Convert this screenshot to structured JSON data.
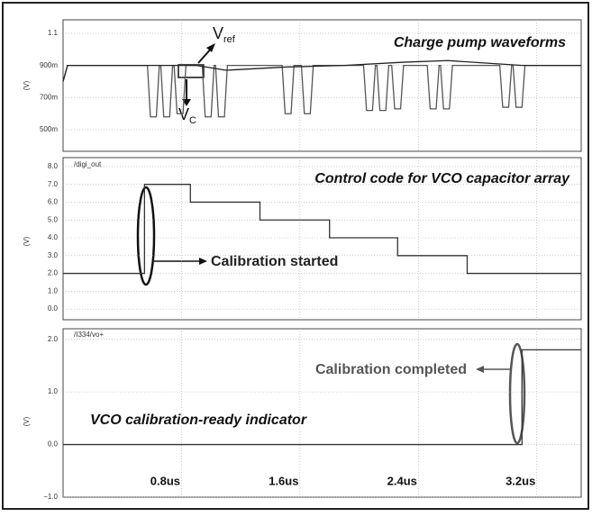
{
  "chart_data": [
    {
      "type": "line",
      "title": "Charge pump waveforms",
      "y_label": "(V)",
      "xlim": [
        0,
        3.5
      ],
      "xticks": [
        0.8,
        1.6,
        2.4,
        3.2
      ],
      "ylim": [
        0.45,
        1.15
      ],
      "yticks": [
        {
          "value": 0.5,
          "label": "500m"
        },
        {
          "value": 0.7,
          "label": "700m"
        },
        {
          "value": 0.9,
          "label": "900m"
        },
        {
          "value": 1.1,
          "label": "1.1"
        }
      ],
      "grid": true,
      "annotations": [
        {
          "main": "V",
          "sub": "ref"
        },
        {
          "main": "V",
          "sub": "C"
        }
      ],
      "series": [
        {
          "name": "Vc",
          "color": "#555555",
          "x": [
            0,
            0.03,
            0.57,
            0.59,
            0.63,
            0.65,
            0.66,
            0.68,
            0.72,
            0.74,
            0.75,
            0.77,
            0.81,
            0.83,
            0.94,
            0.96,
            1.0,
            1.02,
            1.03,
            1.05,
            1.09,
            1.11,
            1.48,
            1.5,
            1.54,
            1.56,
            1.61,
            1.63,
            1.67,
            1.69,
            2.03,
            2.05,
            2.09,
            2.11,
            2.12,
            2.14,
            2.18,
            2.2,
            2.22,
            2.24,
            2.28,
            2.3,
            2.46,
            2.48,
            2.52,
            2.54,
            2.55,
            2.57,
            2.61,
            2.63,
            2.95,
            2.97,
            3.01,
            3.03,
            3.04,
            3.06,
            3.1,
            3.12,
            3.5
          ],
          "values": [
            0.8,
            0.9,
            0.9,
            0.58,
            0.58,
            0.9,
            0.9,
            0.58,
            0.58,
            0.9,
            0.9,
            0.6,
            0.6,
            0.9,
            0.9,
            0.58,
            0.58,
            0.9,
            0.9,
            0.58,
            0.58,
            0.9,
            0.9,
            0.6,
            0.6,
            0.9,
            0.9,
            0.6,
            0.6,
            0.9,
            0.9,
            0.62,
            0.62,
            0.9,
            0.9,
            0.62,
            0.62,
            0.9,
            0.9,
            0.63,
            0.63,
            0.9,
            0.9,
            0.63,
            0.63,
            0.9,
            0.9,
            0.63,
            0.63,
            0.9,
            0.9,
            0.64,
            0.64,
            0.9,
            0.9,
            0.64,
            0.64,
            0.9,
            0.9
          ]
        },
        {
          "name": "Vref",
          "color": "#222222",
          "x": [
            0,
            0.03,
            0.9,
            1.1,
            1.5,
            1.9,
            2.3,
            2.6,
            3.1,
            3.5
          ],
          "values": [
            0.8,
            0.9,
            0.9,
            0.87,
            0.89,
            0.9,
            0.92,
            0.93,
            0.9,
            0.9
          ]
        }
      ]
    },
    {
      "type": "step",
      "title": "Control code for VCO capacitor array",
      "subtitle": "/digi_out",
      "y_label": "(V)",
      "xlim": [
        0,
        3.5
      ],
      "xticks": [
        0.8,
        1.6,
        2.4,
        3.2
      ],
      "ylim": [
        -0.6,
        8.5
      ],
      "yticks": [
        {
          "value": 0,
          "label": "0.0"
        },
        {
          "value": 1,
          "label": "1.0"
        },
        {
          "value": 2,
          "label": "2.0"
        },
        {
          "value": 3,
          "label": "3.0"
        },
        {
          "value": 4,
          "label": "4.0"
        },
        {
          "value": 5,
          "label": "5.0"
        },
        {
          "value": 6,
          "label": "6.0"
        },
        {
          "value": 7,
          "label": "7.0"
        },
        {
          "value": 8,
          "label": "8.0"
        }
      ],
      "grid": true,
      "annotation": "Calibration started",
      "series": [
        {
          "name": "digi_out",
          "color": "#333333",
          "x": [
            0,
            0.55,
            0.86,
            1.33,
            1.8,
            2.26,
            2.73,
            3.5
          ],
          "values": [
            2,
            7,
            6,
            5,
            4,
            3,
            2,
            2
          ]
        }
      ]
    },
    {
      "type": "step",
      "title": "VCO calibration-ready indicator",
      "subtitle": "/I334/vo+",
      "y_label": "(V)",
      "xlim": [
        0,
        3.5
      ],
      "xticks": [
        {
          "value": 0.8,
          "label": "0.8us"
        },
        {
          "value": 1.6,
          "label": "1.6us"
        },
        {
          "value": 2.4,
          "label": "2.4us"
        },
        {
          "value": 3.2,
          "label": "3.2us"
        }
      ],
      "ylim": [
        -1.0,
        2.2
      ],
      "yticks": [
        {
          "value": -1,
          "label": "−1.0"
        },
        {
          "value": 0,
          "label": "0.0"
        },
        {
          "value": 1,
          "label": "1.0"
        },
        {
          "value": 2,
          "label": "2.0"
        }
      ],
      "grid": true,
      "annotation": "Calibration completed",
      "series": [
        {
          "name": "vo+",
          "color": "#333333",
          "x": [
            0,
            3.1,
            3.5
          ],
          "values": [
            0,
            1.8,
            1.8
          ]
        }
      ]
    }
  ]
}
